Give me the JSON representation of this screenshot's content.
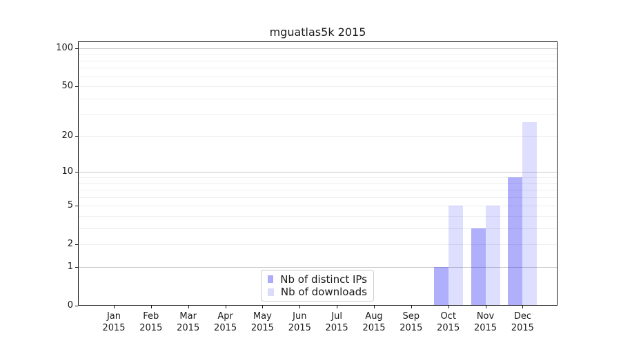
{
  "chart_data": {
    "type": "bar",
    "title": "mguatlas5k 2015",
    "x_year": "2015",
    "categories": [
      "Jan",
      "Feb",
      "Mar",
      "Apr",
      "May",
      "Jun",
      "Jul",
      "Aug",
      "Sep",
      "Oct",
      "Nov",
      "Dec"
    ],
    "series": [
      {
        "name": "Nb of distinct IPs",
        "color": "#acacfa",
        "fill": "rgba(20,20,245,0.34)",
        "values": [
          0,
          0,
          0,
          0,
          0,
          0,
          0,
          0,
          0,
          1,
          3,
          9
        ]
      },
      {
        "name": "Nb of downloads",
        "color": "#dbdbfa",
        "fill": "rgba(20,20,245,0.14)",
        "values": [
          0,
          0,
          0,
          0,
          0,
          0,
          0,
          0,
          0,
          5,
          5,
          26
        ]
      }
    ],
    "y_scale": "log1p",
    "ylim": [
      0,
      113
    ],
    "y_ticks": [
      0,
      1,
      2,
      5,
      10,
      20,
      50,
      100
    ],
    "y_gridlines_major": [
      1,
      10,
      100
    ],
    "y_gridlines_minor": [
      2,
      3,
      4,
      5,
      6,
      7,
      8,
      9,
      20,
      30,
      40,
      50,
      60,
      70,
      80,
      90
    ],
    "grid_major_color": "#c9c9c9",
    "grid_minor_color": "#ededed",
    "legend_position": "lower center inside",
    "grid": "on"
  }
}
